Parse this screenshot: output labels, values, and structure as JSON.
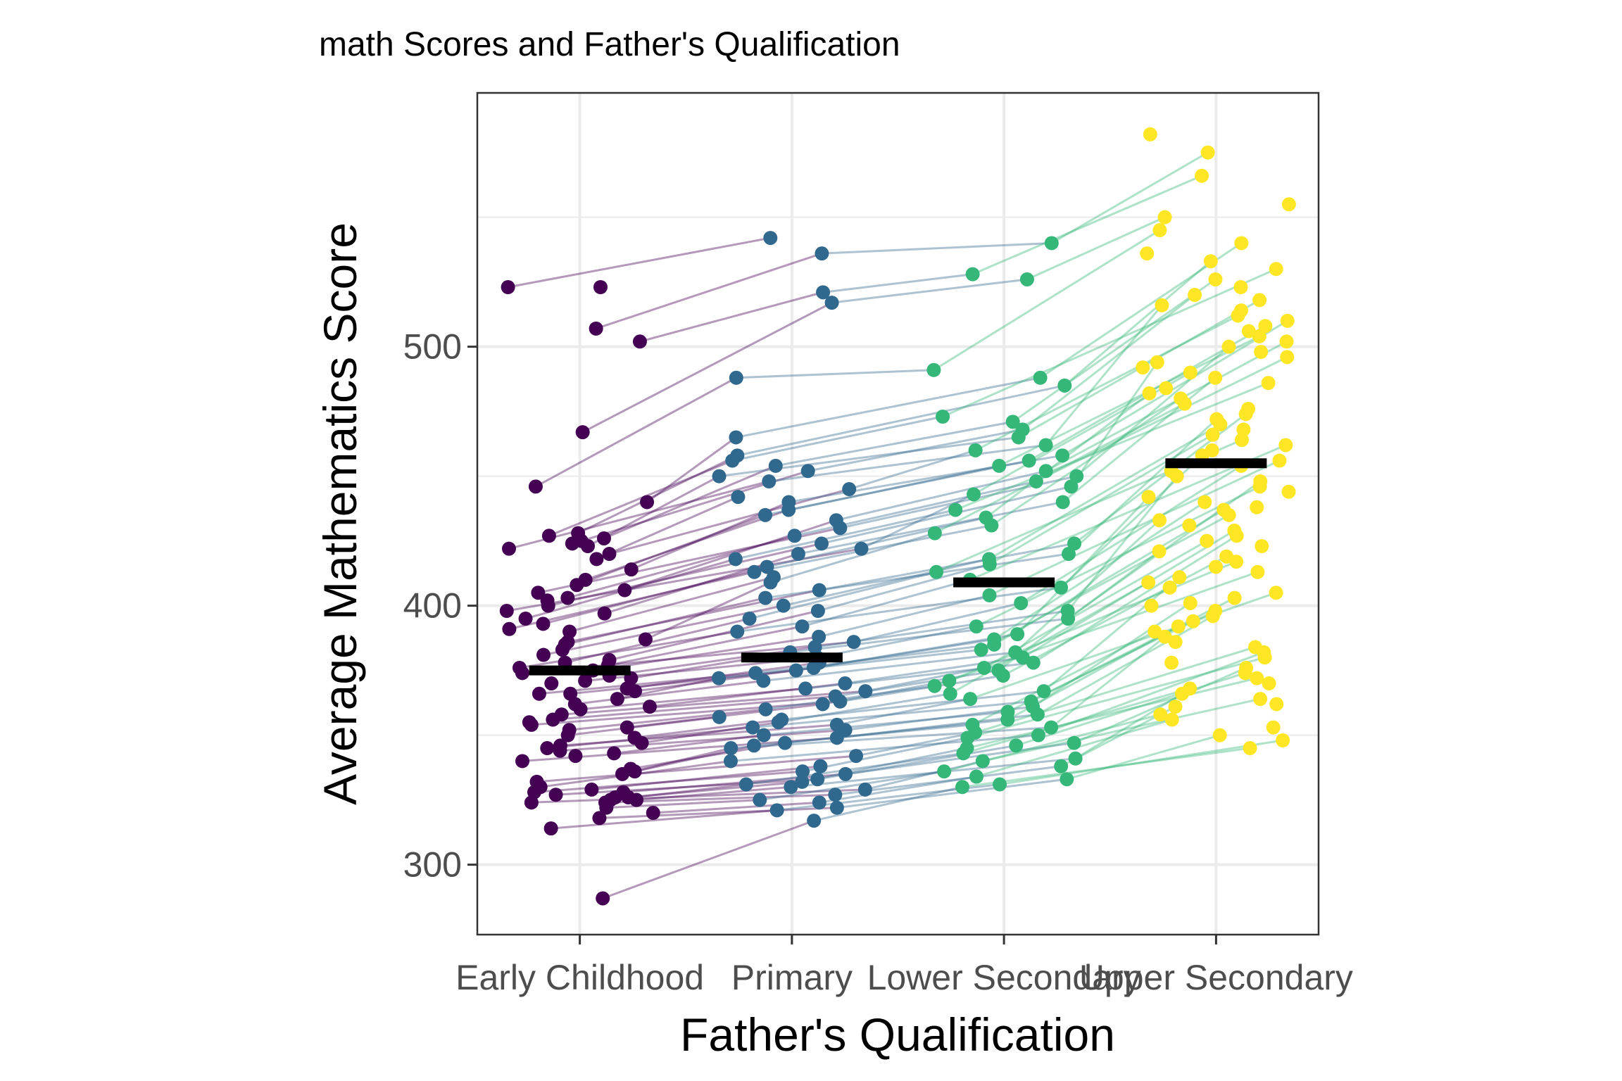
{
  "chart_data": {
    "type": "scatter",
    "title": "math Scores and Father's Qualification",
    "xlabel": "Father's Qualification",
    "ylabel": "Average Mathematics Score",
    "categories": [
      "Early Childhood",
      "Primary",
      "Lower Secondary",
      "Upper Secondary"
    ],
    "ylim": [
      273,
      598
    ],
    "yticks": [
      300,
      400,
      500
    ],
    "grid": true,
    "legend": "none",
    "colors": [
      "#440154",
      "#31688e",
      "#35b779",
      "#fde725"
    ],
    "means": [
      375,
      380,
      409,
      455
    ],
    "mean_color": "#000000",
    "series": [
      {
        "values": [
          287,
          314,
          318,
          320,
          322,
          324,
          324,
          325,
          325,
          326,
          326,
          327,
          328,
          328,
          329,
          330,
          332,
          335,
          336,
          337,
          340,
          342,
          343,
          344,
          345,
          346,
          347,
          349,
          350,
          352,
          353,
          354,
          355,
          356,
          358,
          360,
          361,
          362,
          364,
          366,
          366,
          367,
          368,
          370,
          371,
          372,
          373,
          374,
          375,
          376,
          377,
          378,
          379,
          381,
          383,
          385,
          386,
          387,
          390,
          391,
          393,
          395,
          397,
          398,
          400,
          402,
          403,
          405,
          406,
          408,
          410,
          414,
          418,
          420,
          422,
          423,
          424,
          425,
          426,
          427,
          428,
          440,
          446,
          467,
          502,
          507,
          523,
          523
        ]
      },
      {
        "values": [
          317,
          321,
          322,
          324,
          325,
          327,
          329,
          330,
          331,
          332,
          333,
          335,
          336,
          338,
          340,
          342,
          345,
          346,
          347,
          349,
          350,
          352,
          353,
          354,
          355,
          356,
          357,
          360,
          362,
          363,
          365,
          367,
          368,
          370,
          371,
          372,
          374,
          375,
          376,
          378,
          380,
          382,
          384,
          386,
          388,
          390,
          392,
          395,
          398,
          400,
          403,
          406,
          409,
          411,
          413,
          415,
          418,
          420,
          422,
          424,
          427,
          430,
          433,
          435,
          437,
          440,
          442,
          445,
          448,
          450,
          452,
          454,
          456,
          458,
          465,
          488,
          517,
          521,
          536,
          542
        ]
      },
      {
        "values": [
          330,
          331,
          333,
          334,
          336,
          338,
          340,
          341,
          343,
          345,
          346,
          347,
          349,
          350,
          351,
          353,
          354,
          356,
          358,
          359,
          361,
          363,
          364,
          366,
          367,
          369,
          371,
          373,
          375,
          376,
          378,
          380,
          382,
          383,
          385,
          387,
          389,
          392,
          395,
          398,
          401,
          404,
          407,
          410,
          413,
          416,
          418,
          420,
          424,
          428,
          431,
          434,
          437,
          440,
          443,
          446,
          448,
          450,
          452,
          454,
          456,
          458,
          460,
          462,
          465,
          468,
          471,
          473,
          485,
          488,
          491,
          526,
          528,
          540
        ]
      },
      {
        "values": [
          345,
          348,
          350,
          353,
          356,
          358,
          361,
          362,
          364,
          366,
          368,
          370,
          372,
          374,
          376,
          378,
          380,
          382,
          384,
          386,
          388,
          390,
          392,
          394,
          396,
          398,
          400,
          401,
          403,
          405,
          407,
          409,
          411,
          413,
          415,
          417,
          419,
          421,
          423,
          425,
          427,
          429,
          431,
          433,
          435,
          437,
          438,
          440,
          442,
          444,
          446,
          448,
          450,
          452,
          454,
          456,
          458,
          460,
          462,
          464,
          466,
          468,
          470,
          472,
          474,
          476,
          478,
          480,
          482,
          484,
          486,
          488,
          490,
          492,
          494,
          496,
          498,
          500,
          502,
          504,
          506,
          508,
          510,
          512,
          514,
          516,
          518,
          520,
          523,
          526,
          530,
          533,
          536,
          540,
          545,
          550,
          555,
          566,
          575,
          582
        ]
      }
    ]
  }
}
